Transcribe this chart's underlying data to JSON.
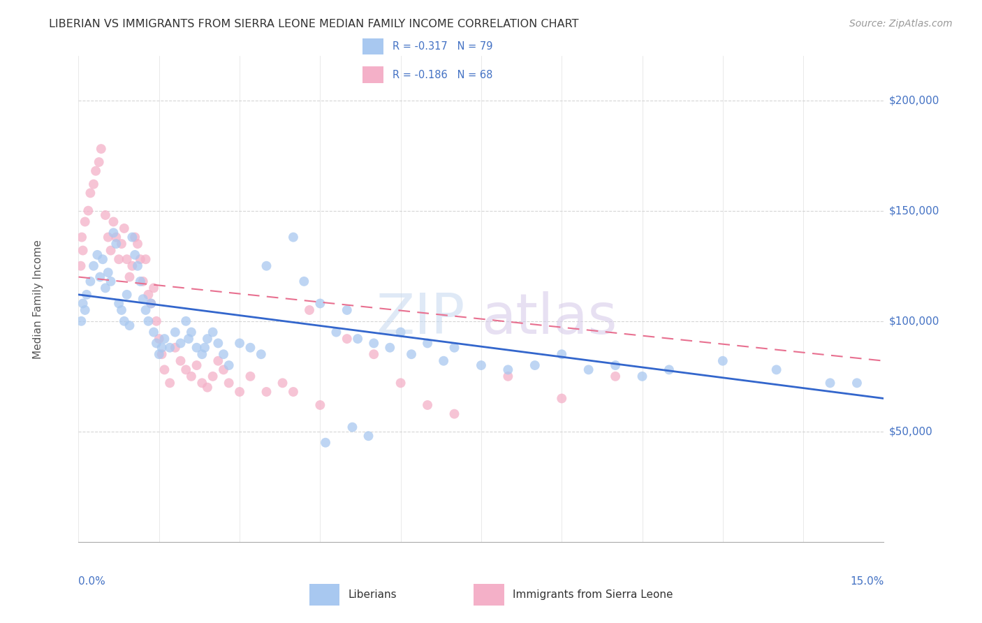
{
  "title": "LIBERIAN VS IMMIGRANTS FROM SIERRA LEONE MEDIAN FAMILY INCOME CORRELATION CHART",
  "source": "Source: ZipAtlas.com",
  "ylabel": "Median Family Income",
  "xlim": [
    0.0,
    15.0
  ],
  "ylim": [
    0,
    220000
  ],
  "right_yticks": [
    50000,
    100000,
    150000,
    200000
  ],
  "right_yticklabels": [
    "$50,000",
    "$100,000",
    "$150,000",
    "$200,000"
  ],
  "liberian_color": "#a8c8f0",
  "sierra_leone_color": "#f4b0c8",
  "liberian_line_color": "#3366cc",
  "sierra_leone_line_color": "#e87090",
  "lib_line_y0": 112000,
  "lib_line_y1": 65000,
  "sl_line_y0": 120000,
  "sl_line_y1": 82000,
  "liberian_points": [
    [
      0.08,
      108000
    ],
    [
      0.15,
      112000
    ],
    [
      0.22,
      118000
    ],
    [
      0.28,
      125000
    ],
    [
      0.35,
      130000
    ],
    [
      0.4,
      120000
    ],
    [
      0.45,
      128000
    ],
    [
      0.5,
      115000
    ],
    [
      0.55,
      122000
    ],
    [
      0.6,
      118000
    ],
    [
      0.65,
      140000
    ],
    [
      0.7,
      135000
    ],
    [
      0.75,
      108000
    ],
    [
      0.8,
      105000
    ],
    [
      0.85,
      100000
    ],
    [
      0.9,
      112000
    ],
    [
      0.95,
      98000
    ],
    [
      0.05,
      100000
    ],
    [
      0.12,
      105000
    ],
    [
      1.0,
      138000
    ],
    [
      1.05,
      130000
    ],
    [
      1.1,
      125000
    ],
    [
      1.15,
      118000
    ],
    [
      1.2,
      110000
    ],
    [
      1.25,
      105000
    ],
    [
      1.3,
      100000
    ],
    [
      1.35,
      108000
    ],
    [
      1.4,
      95000
    ],
    [
      1.45,
      90000
    ],
    [
      1.5,
      85000
    ],
    [
      1.55,
      88000
    ],
    [
      1.6,
      92000
    ],
    [
      1.7,
      88000
    ],
    [
      1.8,
      95000
    ],
    [
      1.9,
      90000
    ],
    [
      2.0,
      100000
    ],
    [
      2.1,
      95000
    ],
    [
      2.2,
      88000
    ],
    [
      2.3,
      85000
    ],
    [
      2.4,
      92000
    ],
    [
      2.5,
      95000
    ],
    [
      2.6,
      90000
    ],
    [
      2.7,
      85000
    ],
    [
      2.8,
      80000
    ],
    [
      3.0,
      90000
    ],
    [
      3.2,
      88000
    ],
    [
      3.4,
      85000
    ],
    [
      3.5,
      125000
    ],
    [
      4.0,
      138000
    ],
    [
      4.2,
      118000
    ],
    [
      4.5,
      108000
    ],
    [
      4.8,
      95000
    ],
    [
      5.0,
      105000
    ],
    [
      5.2,
      92000
    ],
    [
      5.5,
      90000
    ],
    [
      5.8,
      88000
    ],
    [
      6.0,
      95000
    ],
    [
      6.2,
      85000
    ],
    [
      6.5,
      90000
    ],
    [
      6.8,
      82000
    ],
    [
      7.0,
      88000
    ],
    [
      7.5,
      80000
    ],
    [
      8.0,
      78000
    ],
    [
      8.5,
      80000
    ],
    [
      9.0,
      85000
    ],
    [
      9.5,
      78000
    ],
    [
      10.0,
      80000
    ],
    [
      10.5,
      75000
    ],
    [
      11.0,
      78000
    ],
    [
      12.0,
      82000
    ],
    [
      13.0,
      78000
    ],
    [
      14.0,
      72000
    ],
    [
      14.5,
      72000
    ],
    [
      2.05,
      92000
    ],
    [
      2.35,
      88000
    ],
    [
      4.6,
      45000
    ],
    [
      5.1,
      52000
    ],
    [
      5.4,
      48000
    ]
  ],
  "sierra_leone_points": [
    [
      0.08,
      132000
    ],
    [
      0.12,
      145000
    ],
    [
      0.18,
      150000
    ],
    [
      0.22,
      158000
    ],
    [
      0.28,
      162000
    ],
    [
      0.32,
      168000
    ],
    [
      0.38,
      172000
    ],
    [
      0.42,
      178000
    ],
    [
      0.5,
      148000
    ],
    [
      0.55,
      138000
    ],
    [
      0.6,
      132000
    ],
    [
      0.65,
      145000
    ],
    [
      0.7,
      138000
    ],
    [
      0.75,
      128000
    ],
    [
      0.8,
      135000
    ],
    [
      0.85,
      142000
    ],
    [
      0.9,
      128000
    ],
    [
      0.95,
      120000
    ],
    [
      1.0,
      125000
    ],
    [
      1.05,
      138000
    ],
    [
      1.1,
      135000
    ],
    [
      1.15,
      128000
    ],
    [
      1.2,
      118000
    ],
    [
      1.25,
      128000
    ],
    [
      1.3,
      112000
    ],
    [
      1.35,
      108000
    ],
    [
      1.4,
      115000
    ],
    [
      1.45,
      100000
    ],
    [
      1.5,
      92000
    ],
    [
      1.55,
      85000
    ],
    [
      1.6,
      78000
    ],
    [
      1.7,
      72000
    ],
    [
      1.8,
      88000
    ],
    [
      1.9,
      82000
    ],
    [
      2.0,
      78000
    ],
    [
      2.1,
      75000
    ],
    [
      2.2,
      80000
    ],
    [
      2.3,
      72000
    ],
    [
      2.4,
      70000
    ],
    [
      2.5,
      75000
    ],
    [
      2.6,
      82000
    ],
    [
      2.7,
      78000
    ],
    [
      2.8,
      72000
    ],
    [
      3.0,
      68000
    ],
    [
      3.2,
      75000
    ],
    [
      3.5,
      68000
    ],
    [
      3.8,
      72000
    ],
    [
      4.0,
      68000
    ],
    [
      4.3,
      105000
    ],
    [
      4.5,
      62000
    ],
    [
      5.0,
      92000
    ],
    [
      5.5,
      85000
    ],
    [
      6.0,
      72000
    ],
    [
      6.5,
      62000
    ],
    [
      7.0,
      58000
    ],
    [
      8.0,
      75000
    ],
    [
      9.0,
      65000
    ],
    [
      10.0,
      75000
    ],
    [
      0.04,
      125000
    ],
    [
      0.06,
      138000
    ]
  ],
  "background_color": "#ffffff",
  "grid_color": "#cccccc",
  "title_color": "#333333",
  "source_color": "#999999",
  "right_label_color": "#4472c4",
  "watermark_zip_color": "#c5d8f0",
  "watermark_atlas_color": "#d4c8e8"
}
